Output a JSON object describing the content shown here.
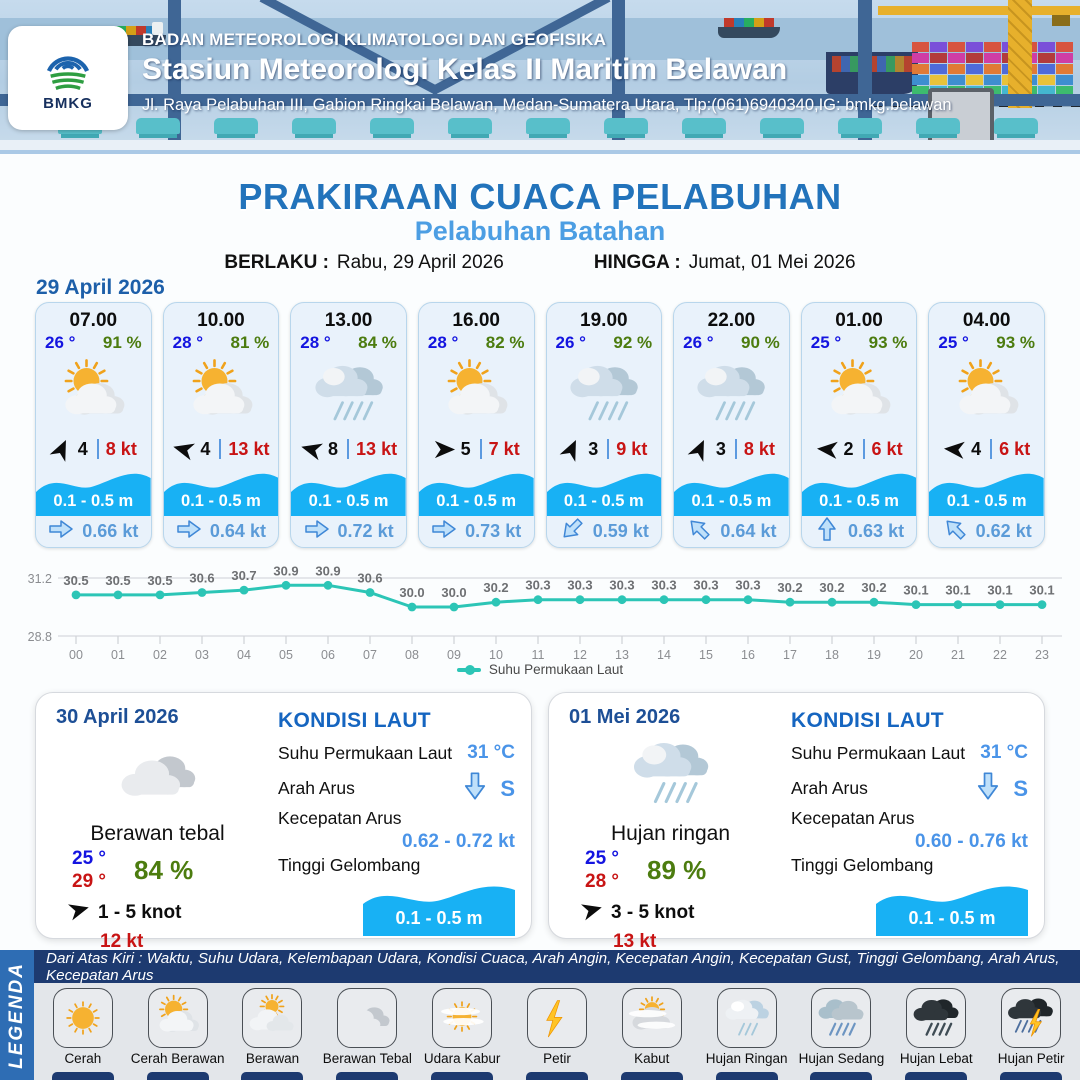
{
  "header": {
    "agency": "BADAN METEOROLOGI KLIMATOLOGI DAN GEOFISIKA",
    "station": "Stasiun Meteorologi Kelas II Maritim Belawan",
    "address": "Jl. Raya Pelabuhan III, Gabion Ringkai Belawan, Medan-Sumatera Utara, Tlp:(061)6940340,IG: bmkg.belawan",
    "logo_label": "BMKG"
  },
  "title": {
    "main": "PRAKIRAAN CUACA PELABUHAN",
    "port": "Pelabuhan Batahan",
    "valid_label": "BERLAKU :",
    "valid_value": "Rabu, 29 April 2026",
    "until_label": "HINGGA :",
    "until_value": "Jumat, 01 Mei 2026"
  },
  "hourly": {
    "date": "29 April 2026",
    "cards": [
      {
        "time": "07.00",
        "temp": "26 °",
        "humidity": "91 %",
        "icon": "sun-cloud",
        "wind_deg": -65,
        "wind_val": "4",
        "gust": "8 kt",
        "wave": "0.1 - 0.5 m",
        "cur_deg": 0,
        "current": "0.66 kt"
      },
      {
        "time": "10.00",
        "temp": "28 °",
        "humidity": "81 %",
        "icon": "sun-cloud",
        "wind_deg": 195,
        "wind_val": "4",
        "gust": "13 kt",
        "wave": "0.1 - 0.5 m",
        "cur_deg": 0,
        "current": "0.64 kt"
      },
      {
        "time": "13.00",
        "temp": "28 °",
        "humidity": "84 %",
        "icon": "rain",
        "wind_deg": 195,
        "wind_val": "8",
        "gust": "13 kt",
        "wave": "0.1 - 0.5 m",
        "cur_deg": 0,
        "current": "0.72 kt"
      },
      {
        "time": "16.00",
        "temp": "28 °",
        "humidity": "82 %",
        "icon": "sun-cloud",
        "wind_deg": 0,
        "wind_val": "5",
        "gust": "7 kt",
        "wave": "0.1 - 0.5 m",
        "cur_deg": 0,
        "current": "0.73 kt"
      },
      {
        "time": "19.00",
        "temp": "26 °",
        "humidity": "92 %",
        "icon": "rain",
        "wind_deg": -65,
        "wind_val": "3",
        "gust": "9 kt",
        "wave": "0.1 - 0.5 m",
        "cur_deg": 135,
        "current": "0.59 kt"
      },
      {
        "time": "22.00",
        "temp": "26 °",
        "humidity": "90 %",
        "icon": "rain",
        "wind_deg": -65,
        "wind_val": "3",
        "gust": "8 kt",
        "wave": "0.1 - 0.5 m",
        "cur_deg": -135,
        "current": "0.64 kt"
      },
      {
        "time": "01.00",
        "temp": "25 °",
        "humidity": "93 %",
        "icon": "sun-cloud",
        "wind_deg": 185,
        "wind_val": "2",
        "gust": "6 kt",
        "wave": "0.1 - 0.5 m",
        "cur_deg": -90,
        "current": "0.63 kt"
      },
      {
        "time": "04.00",
        "temp": "25 °",
        "humidity": "93 %",
        "icon": "sun-cloud",
        "wind_deg": 185,
        "wind_val": "4",
        "gust": "6 kt",
        "wave": "0.1 - 0.5 m",
        "cur_deg": -135,
        "current": "0.62 kt"
      }
    ]
  },
  "chart_data": {
    "type": "line",
    "x": [
      "00",
      "01",
      "02",
      "03",
      "04",
      "05",
      "06",
      "07",
      "08",
      "09",
      "10",
      "11",
      "12",
      "13",
      "14",
      "15",
      "16",
      "17",
      "18",
      "19",
      "20",
      "21",
      "22",
      "23"
    ],
    "series": [
      {
        "name": "Suhu Permukaan Laut",
        "values": [
          30.5,
          30.5,
          30.5,
          30.6,
          30.7,
          30.9,
          30.9,
          30.6,
          30.0,
          30.0,
          30.2,
          30.3,
          30.3,
          30.3,
          30.3,
          30.3,
          30.3,
          30.2,
          30.2,
          30.2,
          30.1,
          30.1,
          30.1,
          30.1
        ]
      }
    ],
    "ylim": [
      28.8,
      31.2
    ],
    "line_color": "#2cc5b6",
    "legend_position": "bottom",
    "grid": true
  },
  "daily": [
    {
      "date": "30 April 2026",
      "icon": "cloud-thick",
      "condition": "Berawan tebal",
      "temp_min": "25 °",
      "temp_max": "29 °",
      "humidity": "84 %",
      "wind_deg": -15,
      "wind_range": "1  - 5 knot",
      "gust": "12 kt",
      "sea": {
        "title": "KONDISI LAUT",
        "sst_label": "Suhu Permukaan Laut",
        "sst": "31 °C",
        "current_dir_label": "Arah Arus",
        "current_dir": "S",
        "current_dir_deg": 90,
        "current_speed_label": "Kecepatan Arus",
        "current_speed": "0.62 - 0.72 kt",
        "wave_label": "Tinggi Gelombang",
        "wave": "0.1 - 0.5 m"
      }
    },
    {
      "date": "01 Mei 2026",
      "icon": "rain",
      "condition": "Hujan ringan",
      "temp_min": "25 °",
      "temp_max": "28 °",
      "humidity": "89 %",
      "wind_deg": -15,
      "wind_range": "3  - 5 knot",
      "gust": "13 kt",
      "sea": {
        "title": "KONDISI LAUT",
        "sst_label": "Suhu Permukaan Laut",
        "sst": "31 °C",
        "current_dir_label": "Arah Arus",
        "current_dir": "S",
        "current_dir_deg": 90,
        "current_speed_label": "Kecepatan Arus",
        "current_speed": "0.60  - 0.76 kt",
        "wave_label": "Tinggi Gelombang",
        "wave": "0.1 - 0.5 m"
      }
    }
  ],
  "legend": {
    "label": "LEGENDA",
    "description": "Dari Atas Kiri : Waktu, Suhu Udara, Kelembapan Udara, Kondisi Cuaca, Arah Angin, Kecepatan Angin, Kecepatan Gust, Tinggi Gelombang, Arah Arus, Kecepatan Arus",
    "items": [
      {
        "label": "Cerah",
        "icon": "sun"
      },
      {
        "label": "Cerah Berawan",
        "icon": "sun-cloud"
      },
      {
        "label": "Berawan",
        "icon": "cloud-sun"
      },
      {
        "label": "Berawan Tebal",
        "icon": "cloud-thick"
      },
      {
        "label": "Udara Kabur",
        "icon": "haze"
      },
      {
        "label": "Petir",
        "icon": "lightning"
      },
      {
        "label": "Kabut",
        "icon": "fog"
      },
      {
        "label": "Hujan Ringan",
        "icon": "rain-light"
      },
      {
        "label": "Hujan Sedang",
        "icon": "rain-medium"
      },
      {
        "label": "Hujan Lebat",
        "icon": "rain-heavy"
      },
      {
        "label": "Hujan Petir",
        "icon": "rain-lightning"
      }
    ]
  },
  "colors": {
    "title_blue": "#2273bb",
    "subtitle_blue": "#4c9ee3",
    "wave_blue": "#18b1f4",
    "line_teal": "#2cc5b6",
    "temp_blue": "#1414e0",
    "humidity_green": "#4c7c0f",
    "speed_red": "#c81414",
    "current_blue": "#5b9bd8",
    "navy_bar": "#1d3a70",
    "legend_strip_blue": "#2e6db4"
  }
}
